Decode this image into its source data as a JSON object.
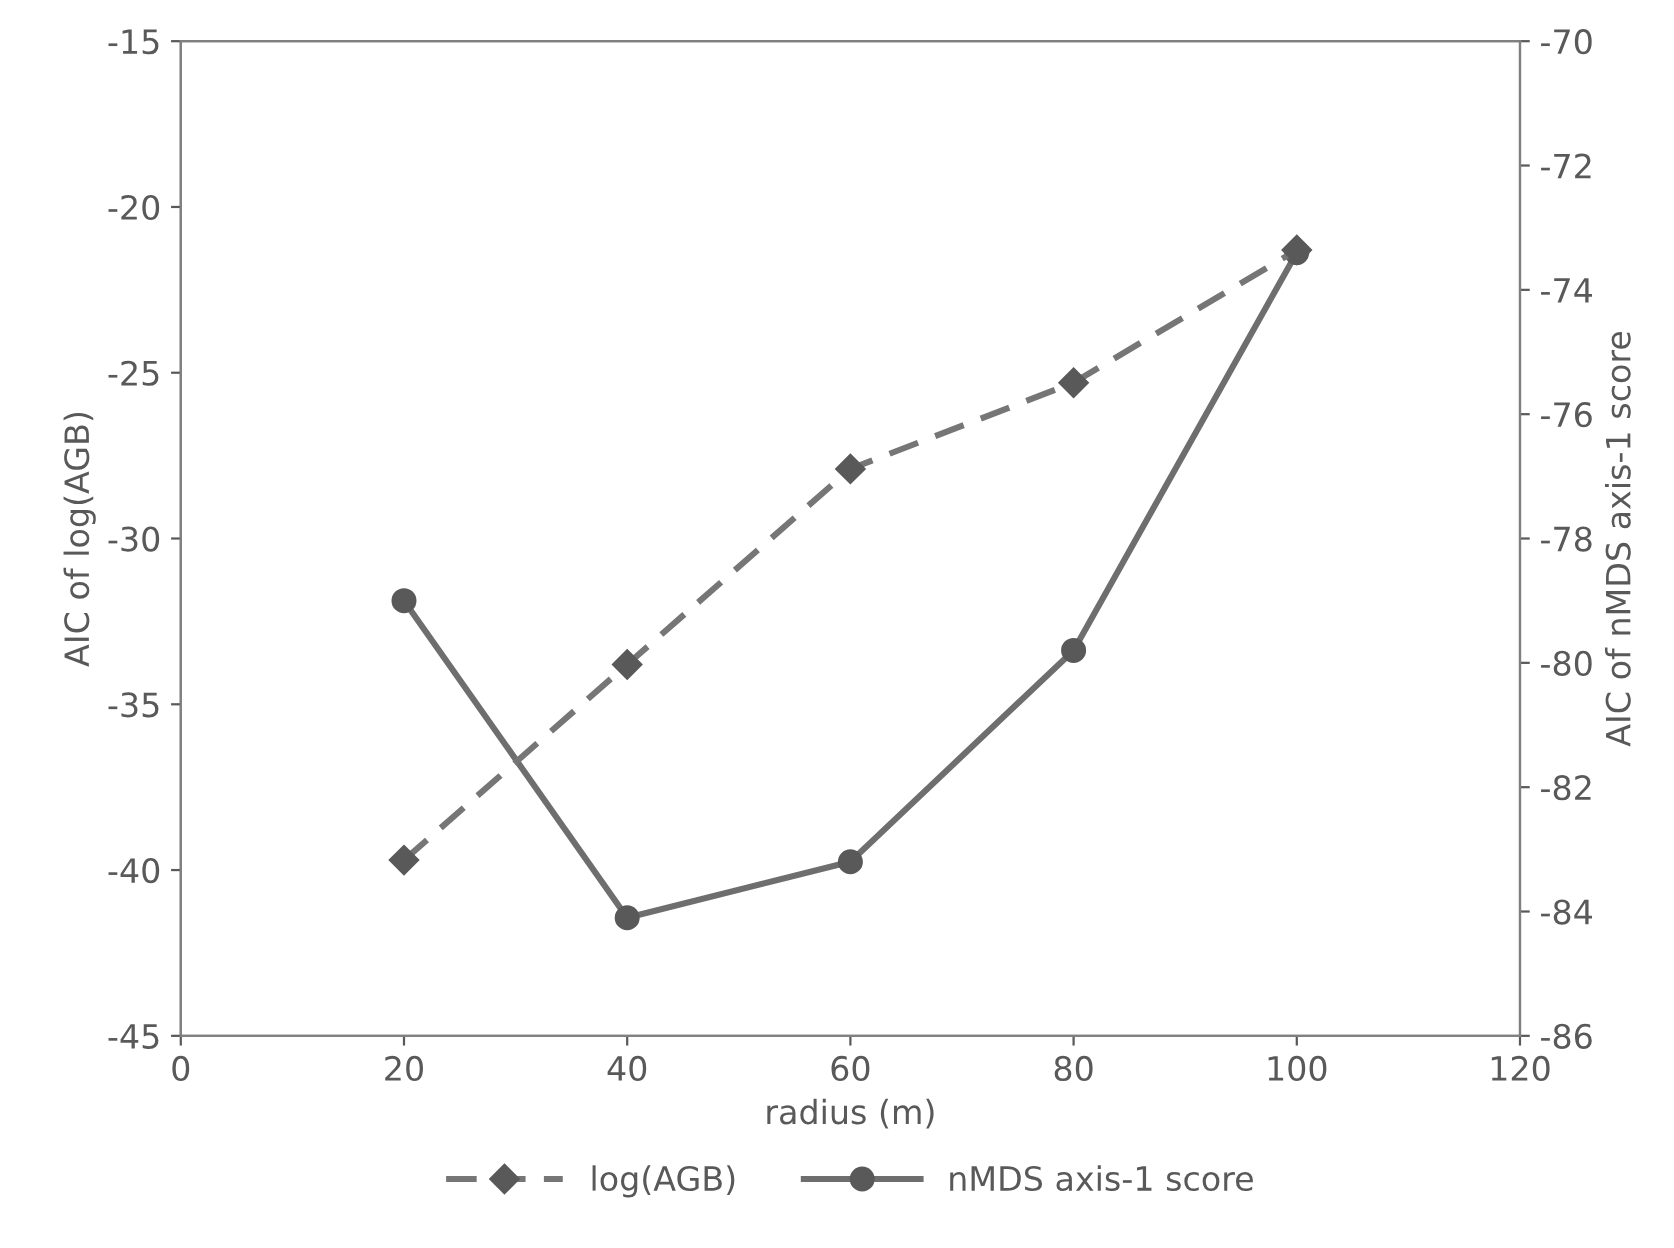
{
  "chart_data": {
    "type": "line",
    "xlabel": "radius (m)",
    "ylabel": "AIC of log(AGB)",
    "y2label": "AIC of nMDS axis-1 score",
    "x": [
      20,
      40,
      60,
      80,
      100
    ],
    "series": [
      {
        "name": "log(AGB)",
        "color": "#767676",
        "values": [
          -39.7,
          -33.8,
          -27.9,
          -25.3,
          -21.3
        ],
        "marker": "diamond",
        "line_style": "dashed"
      },
      {
        "name": "nMDS axis-1 score",
        "color": "#6e6e6e",
        "values": [
          -79.0,
          -84.1,
          -83.2,
          -79.8,
          -73.4
        ],
        "marker": "circle",
        "line_style": "solid",
        "axis": "y2"
      }
    ],
    "xlim": [
      0,
      120
    ],
    "xticks": [
      0,
      20,
      40,
      60,
      80,
      100,
      120
    ],
    "ylim": [
      -45,
      -15
    ],
    "yticks": [
      -45,
      -40,
      -35,
      -30,
      -25,
      -20,
      -15
    ],
    "y2lim": [
      -86,
      -70
    ],
    "y2ticks": [
      -86,
      -84,
      -82,
      -80,
      -78,
      -76,
      -74,
      -72,
      -70
    ],
    "grid": false,
    "legend": "bottom"
  }
}
